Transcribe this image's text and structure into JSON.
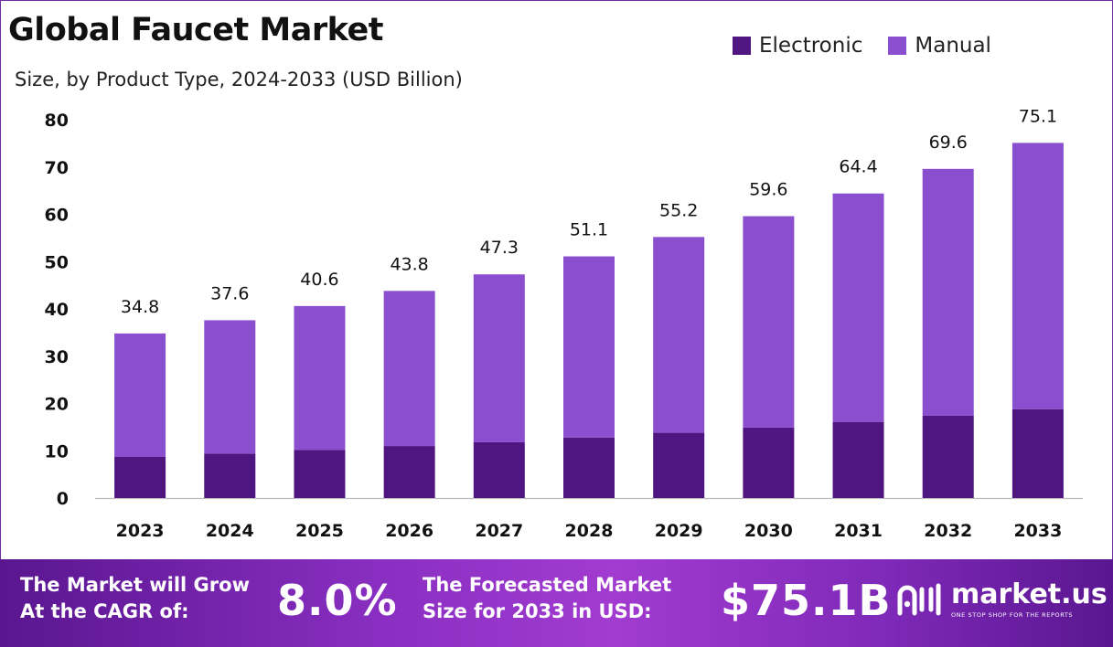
{
  "chart_data": {
    "type": "bar",
    "stacked": true,
    "title": "Global Faucet Market",
    "subtitle": "Size, by Product Type, 2024-2033 (USD Billion)",
    "categories": [
      "2023",
      "2024",
      "2025",
      "2026",
      "2027",
      "2028",
      "2029",
      "2030",
      "2031",
      "2032",
      "2033"
    ],
    "series": [
      {
        "name": "Electronic",
        "color": "#4f1580",
        "values": [
          8.7,
          9.4,
          10.2,
          11.0,
          11.8,
          12.8,
          13.8,
          14.9,
          16.1,
          17.4,
          18.8
        ]
      },
      {
        "name": "Manual",
        "color": "#8a4fcf",
        "values": [
          26.1,
          28.2,
          30.4,
          32.8,
          35.5,
          38.3,
          41.4,
          44.7,
          48.3,
          52.2,
          56.3
        ]
      }
    ],
    "totals": [
      "34.8",
      "37.6",
      "40.6",
      "43.8",
      "47.3",
      "51.1",
      "55.2",
      "59.6",
      "64.4",
      "69.6",
      "75.1"
    ],
    "y_ticks": [
      0,
      10,
      20,
      30,
      40,
      50,
      60,
      70,
      80
    ],
    "ylim": [
      0,
      80
    ],
    "legend_position": "top-right",
    "grid": false
  },
  "banner": {
    "cagr_label_line1": "The Market will Grow",
    "cagr_label_line2": "At the CAGR of:",
    "cagr_value": "8.0%",
    "forecast_label_line1": "The Forecasted Market",
    "forecast_label_line2": "Size for 2033 in USD:",
    "forecast_value": "$75.1B",
    "logo_name": "market.us",
    "logo_tagline": "ONE STOP SHOP FOR THE REPORTS"
  },
  "colors": {
    "banner_bg": "#7e29b8",
    "axis": "#bdbdbd"
  }
}
